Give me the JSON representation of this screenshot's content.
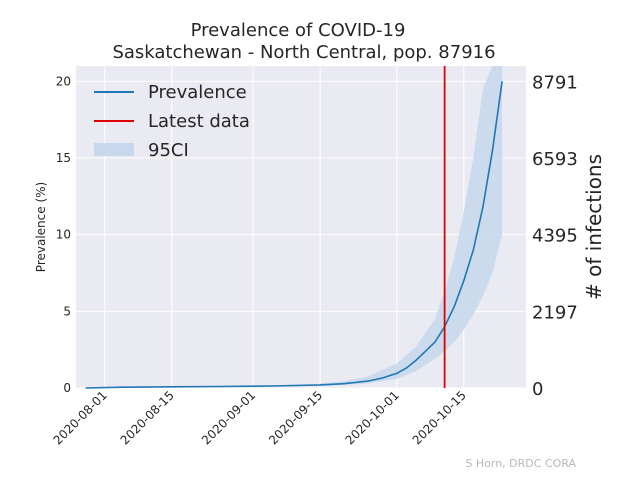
{
  "chart_data": {
    "type": "line",
    "title": "Prevalence of COVID-19",
    "subtitle": "Saskatchewan - North Central, pop. 87916",
    "ylabel": "Prevalence (%)",
    "y2label": "# of infections",
    "xlim": [
      "2020-07-26",
      "2020-10-28"
    ],
    "ylim": [
      0,
      21
    ],
    "y2ticks": [
      0,
      2197,
      4395,
      6593,
      8791
    ],
    "x_ticks": [
      "2020-08-01",
      "2020-08-15",
      "2020-09-01",
      "2020-09-15",
      "2020-10-01",
      "2020-10-15"
    ],
    "y_ticks": [
      0,
      5,
      10,
      15,
      20
    ],
    "grid": true,
    "legend_position": "top-left",
    "legend": [
      "Prevalence",
      "Latest data",
      "95CI"
    ],
    "latest_data_date": "2020-10-11",
    "colors": {
      "prevalence": "#1f77b4",
      "latest": "#e00000",
      "ci": "#c8d8ec"
    },
    "series": [
      {
        "name": "Prevalence",
        "x": [
          "2020-07-28",
          "2020-08-05",
          "2020-08-15",
          "2020-08-25",
          "2020-09-05",
          "2020-09-15",
          "2020-09-20",
          "2020-09-25",
          "2020-09-28",
          "2020-10-01",
          "2020-10-03",
          "2020-10-05",
          "2020-10-07",
          "2020-10-09",
          "2020-10-11",
          "2020-10-13",
          "2020-10-15",
          "2020-10-17",
          "2020-10-19",
          "2020-10-21",
          "2020-10-23"
        ],
        "y": [
          0.0,
          0.05,
          0.08,
          0.1,
          0.13,
          0.2,
          0.28,
          0.45,
          0.65,
          0.95,
          1.3,
          1.8,
          2.4,
          3.0,
          4.0,
          5.3,
          7.0,
          9.0,
          11.8,
          15.5,
          20.0
        ]
      },
      {
        "name": "95CI",
        "x": [
          "2020-09-15",
          "2020-09-20",
          "2020-09-25",
          "2020-10-01",
          "2020-10-05",
          "2020-10-09",
          "2020-10-11",
          "2020-10-13",
          "2020-10-15",
          "2020-10-17",
          "2020-10-19",
          "2020-10-21",
          "2020-10-23"
        ],
        "lower": [
          0.15,
          0.2,
          0.3,
          0.6,
          1.1,
          1.9,
          2.4,
          3.0,
          3.8,
          4.8,
          6.0,
          7.5,
          10.0
        ],
        "upper": [
          0.3,
          0.45,
          0.75,
          1.6,
          2.7,
          4.5,
          6.3,
          8.5,
          11.5,
          15.0,
          19.5,
          21.0,
          21.0
        ]
      }
    ]
  },
  "credit": "S Horn, DRDC CORA"
}
